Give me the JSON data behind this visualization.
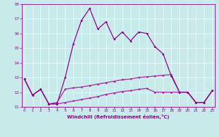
{
  "xlabel": "Windchill (Refroidissement éolien,°C)",
  "x": [
    0,
    1,
    2,
    3,
    4,
    5,
    6,
    7,
    8,
    9,
    10,
    11,
    12,
    13,
    14,
    15,
    16,
    17,
    18,
    19,
    20,
    21,
    22,
    23
  ],
  "line1": [
    12.9,
    11.8,
    12.2,
    11.2,
    11.2,
    13.0,
    15.3,
    16.9,
    17.7,
    16.3,
    16.8,
    15.6,
    16.1,
    15.5,
    16.1,
    16.0,
    15.1,
    14.6,
    13.1,
    12.0,
    12.0,
    11.3,
    11.3,
    12.1
  ],
  "line2": [
    12.9,
    11.8,
    12.2,
    11.2,
    11.3,
    12.2,
    12.3,
    12.35,
    12.45,
    12.55,
    12.65,
    12.75,
    12.85,
    12.9,
    13.0,
    13.05,
    13.1,
    13.15,
    13.2,
    12.0,
    12.0,
    11.3,
    11.3,
    12.1
  ],
  "line3": [
    12.9,
    11.8,
    12.2,
    11.2,
    11.2,
    11.3,
    11.4,
    11.5,
    11.6,
    11.7,
    11.85,
    11.95,
    12.05,
    12.1,
    12.2,
    12.25,
    12.0,
    12.0,
    12.0,
    12.0,
    12.0,
    11.3,
    11.3,
    12.1
  ],
  "line_color1": "#880088",
  "line_color2": "#aa22aa",
  "line_color3": "#aa22aa",
  "bg_color": "#c8eaea",
  "grid_color": "#e8f8f8",
  "text_color": "#880088",
  "ylim": [
    11,
    18
  ],
  "yticks": [
    11,
    12,
    13,
    14,
    15,
    16,
    17,
    18
  ],
  "xticks": [
    0,
    1,
    2,
    3,
    4,
    5,
    6,
    7,
    8,
    9,
    10,
    11,
    12,
    13,
    14,
    15,
    16,
    17,
    18,
    19,
    20,
    21,
    22,
    23
  ],
  "figwidth": 3.2,
  "figheight": 2.0,
  "dpi": 100
}
